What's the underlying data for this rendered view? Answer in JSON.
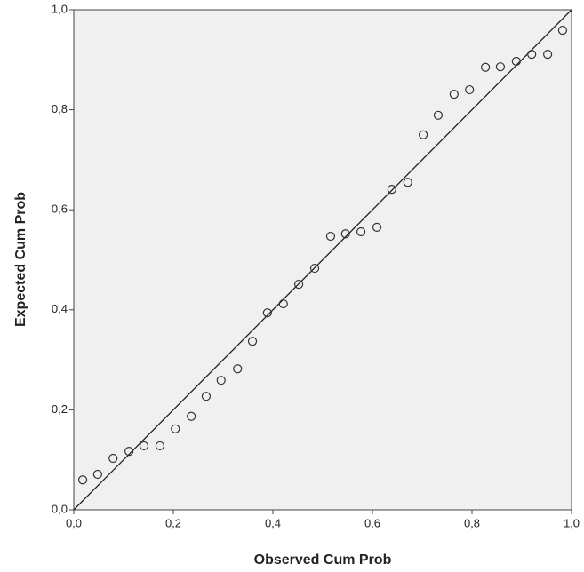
{
  "chart_data": {
    "type": "scatter",
    "x_label": "Observed Cum Prob",
    "y_label": "Expected Cum Prob",
    "x": [
      0.018,
      0.048,
      0.079,
      0.111,
      0.141,
      0.173,
      0.204,
      0.236,
      0.266,
      0.296,
      0.329,
      0.359,
      0.389,
      0.421,
      0.452,
      0.484,
      0.516,
      0.546,
      0.577,
      0.609,
      0.639,
      0.671,
      0.702,
      0.732,
      0.764,
      0.795,
      0.827,
      0.857,
      0.889,
      0.92,
      0.952,
      0.982
    ],
    "values": [
      0.06,
      0.071,
      0.103,
      0.117,
      0.128,
      0.128,
      0.162,
      0.187,
      0.227,
      0.259,
      0.282,
      0.337,
      0.394,
      0.412,
      0.451,
      0.483,
      0.547,
      0.552,
      0.556,
      0.565,
      0.641,
      0.655,
      0.75,
      0.789,
      0.831,
      0.84,
      0.885,
      0.886,
      0.897,
      0.911,
      0.911,
      0.959
    ],
    "color": "#333333",
    "xlim": [
      0,
      1
    ],
    "ylim": [
      0,
      1
    ],
    "xticks": [
      {
        "value": 0,
        "label": "0,0"
      },
      {
        "value": 0.2,
        "label": "0,2"
      },
      {
        "value": 0.4,
        "label": "0,4"
      },
      {
        "value": 0.6,
        "label": "0,6"
      },
      {
        "value": 0.8,
        "label": "0,8"
      },
      {
        "value": 1,
        "label": "1,0"
      }
    ],
    "yticks": [
      {
        "value": 0,
        "label": "0,0"
      },
      {
        "value": 0.2,
        "label": "0,2"
      },
      {
        "value": 0.4,
        "label": "0,4"
      },
      {
        "value": 0.6,
        "label": "0,6"
      },
      {
        "value": 0.8,
        "label": "0,8"
      },
      {
        "value": 1,
        "label": "1,0"
      }
    ],
    "reference_line": true
  }
}
